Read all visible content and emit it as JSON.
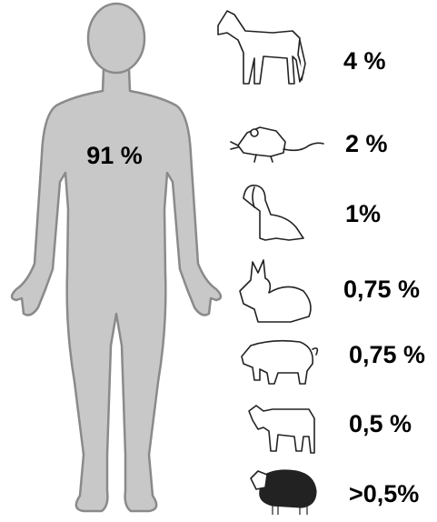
{
  "human": {
    "label": "91 %"
  },
  "animals": [
    {
      "label": "4 %"
    },
    {
      "label": "2 %"
    },
    {
      "label": "1%"
    },
    {
      "label": "0,75 %"
    },
    {
      "label": "0,75 %"
    },
    {
      "label": "0,5 %"
    },
    {
      "label": ">0,5%"
    }
  ]
}
